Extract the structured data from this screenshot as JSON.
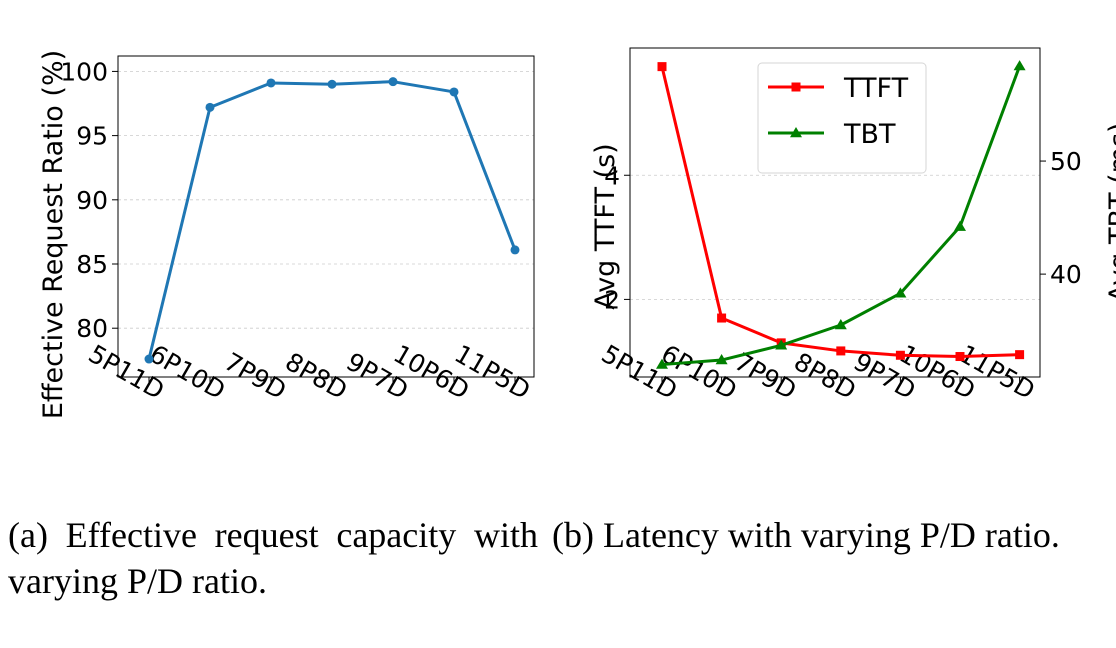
{
  "chart_data": [
    {
      "type": "line",
      "categories": [
        "5P11D",
        "6P10D",
        "7P9D",
        "8P8D",
        "9P7D",
        "10P6D",
        "11P5D"
      ],
      "series": [
        {
          "values": [
            77.6,
            97.2,
            99.1,
            99.0,
            99.2,
            98.4,
            86.1
          ],
          "color": "#1f77b4",
          "marker": "circle"
        }
      ],
      "ylabel": "Effective Request Ratio (%)",
      "ylim": [
        76.2,
        101.2
      ],
      "yticks": [
        80,
        85,
        90,
        95,
        100
      ],
      "grid": "horizontal-dashed",
      "caption": "(a) Effective request capacity with varying P/D ratio."
    },
    {
      "type": "line",
      "categories": [
        "5P11D",
        "6P10D",
        "7P9D",
        "8P8D",
        "9P7D",
        "10P6D",
        "11P5D"
      ],
      "series": [
        {
          "name": "TTFT",
          "axis": "left",
          "values": [
            5.75,
            1.7,
            1.3,
            1.17,
            1.1,
            1.08,
            1.11
          ],
          "color": "#ff0000",
          "marker": "square"
        },
        {
          "name": "TBT",
          "axis": "right",
          "values": [
            32.0,
            32.4,
            33.7,
            35.5,
            38.3,
            44.2,
            58.4
          ],
          "color": "#008000",
          "marker": "triangle"
        }
      ],
      "ylabel": "Avg TTFT (s)",
      "ylim": [
        0.75,
        6.05
      ],
      "yticks": [
        2,
        4
      ],
      "ylabel_right": "Avg TBT (ms)",
      "ylim_right": [
        30.9,
        60.0
      ],
      "yticks_right": [
        40,
        50
      ],
      "legend": "top-center",
      "grid": "horizontal-dashed",
      "caption": "(b) Latency with varying P/D ratio."
    }
  ]
}
